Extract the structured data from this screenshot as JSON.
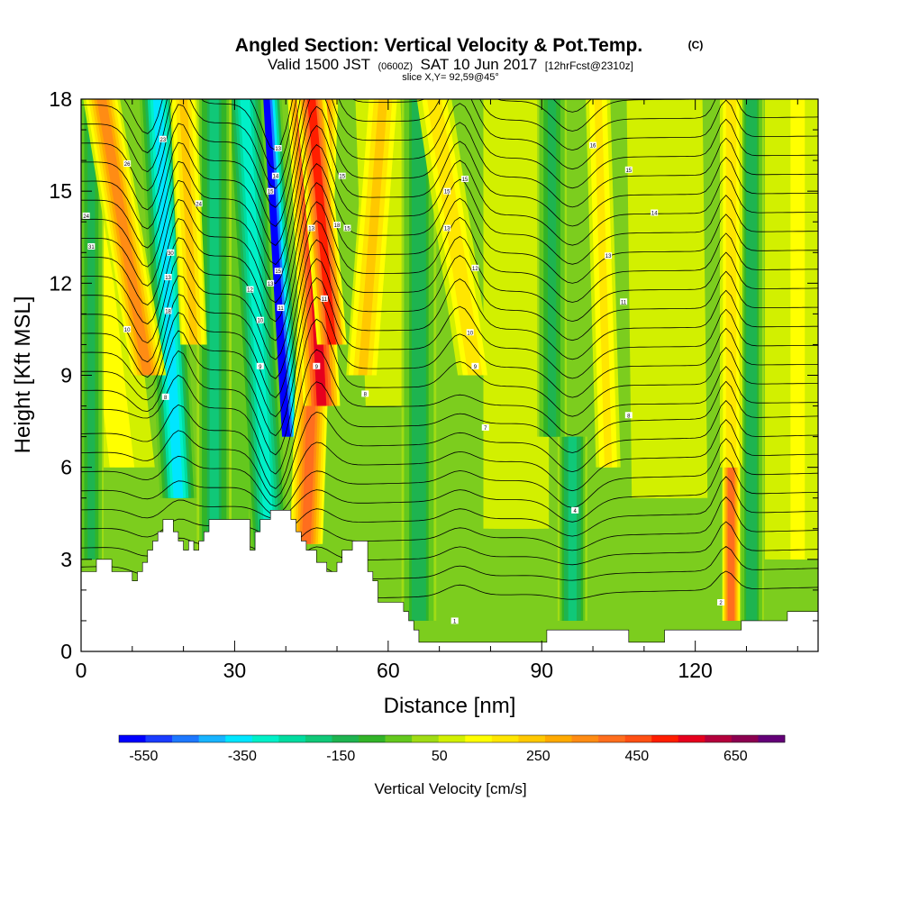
{
  "chart_data": {
    "type": "heatmap",
    "title": "Angled Section: Vertical Velocity & Pot.Temp.",
    "title_mark": "(C)",
    "subtitle_parts": [
      "Valid 1500 JST",
      "(0600Z)",
      "SAT 10 Jun 2017",
      "[12hrFcst@2310z]"
    ],
    "slice_text": "slice X,Y= 92,59@45°",
    "xlabel": "Distance [nm]",
    "ylabel": "Height [Kft MSL]",
    "xlim": [
      0,
      144
    ],
    "ylim": [
      0,
      18
    ],
    "x_ticks": [
      "0",
      "30",
      "60",
      "90",
      "120"
    ],
    "y_ticks": [
      "0",
      "3",
      "6",
      "9",
      "12",
      "15",
      "18"
    ],
    "colorbar": {
      "label": "Vertical Velocity [cm/s]",
      "tick_labels": [
        "-550",
        "-350",
        "-150",
        "50",
        "250",
        "450",
        "650"
      ],
      "bounds": [
        -600,
        750
      ],
      "colors": [
        "#0000ff",
        "#1a3cff",
        "#1e78ff",
        "#18b4ff",
        "#00e6ff",
        "#00f0c8",
        "#00dca0",
        "#10c878",
        "#1eb450",
        "#32b428",
        "#64c81e",
        "#a0dc14",
        "#d2f000",
        "#ffff00",
        "#ffe600",
        "#ffc800",
        "#ffaa00",
        "#ff8c14",
        "#ff6e1e",
        "#ff5014",
        "#ff1e00",
        "#e6001e",
        "#b4003c",
        "#8c0050",
        "#640078"
      ]
    },
    "terrain_kft": [
      [
        0,
        2.6
      ],
      [
        3,
        2.6
      ],
      [
        3,
        3.0
      ],
      [
        6,
        3.0
      ],
      [
        6,
        2.6
      ],
      [
        10,
        2.6
      ],
      [
        10,
        2.3
      ],
      [
        11,
        2.3
      ],
      [
        11,
        2.6
      ],
      [
        12,
        2.6
      ],
      [
        12,
        2.9
      ],
      [
        13,
        2.9
      ],
      [
        13,
        3.3
      ],
      [
        14,
        3.3
      ],
      [
        14,
        3.6
      ],
      [
        15,
        3.6
      ],
      [
        15,
        3.9
      ],
      [
        16,
        3.9
      ],
      [
        16,
        4.3
      ],
      [
        18,
        4.3
      ],
      [
        18,
        3.9
      ],
      [
        19,
        3.9
      ],
      [
        19,
        3.6
      ],
      [
        20,
        3.6
      ],
      [
        20,
        3.3
      ],
      [
        21,
        3.3
      ],
      [
        21,
        3.6
      ],
      [
        22,
        3.6
      ],
      [
        22,
        3.3
      ],
      [
        23,
        3.3
      ],
      [
        23,
        3.6
      ],
      [
        24,
        3.6
      ],
      [
        24,
        3.9
      ],
      [
        25,
        3.9
      ],
      [
        25,
        4.3
      ],
      [
        33,
        4.3
      ],
      [
        33,
        3.3
      ],
      [
        34,
        3.3
      ],
      [
        34,
        3.9
      ],
      [
        35,
        3.9
      ],
      [
        35,
        4.3
      ],
      [
        37,
        4.3
      ],
      [
        37,
        4.6
      ],
      [
        41,
        4.6
      ],
      [
        41,
        4.3
      ],
      [
        42,
        4.3
      ],
      [
        42,
        3.9
      ],
      [
        43,
        3.9
      ],
      [
        43,
        3.6
      ],
      [
        44,
        3.6
      ],
      [
        44,
        3.3
      ],
      [
        46,
        3.3
      ],
      [
        46,
        2.9
      ],
      [
        48,
        2.9
      ],
      [
        48,
        2.6
      ],
      [
        50,
        2.6
      ],
      [
        50,
        2.9
      ],
      [
        51,
        2.9
      ],
      [
        51,
        3.3
      ],
      [
        53,
        3.3
      ],
      [
        53,
        3.6
      ],
      [
        56,
        3.6
      ],
      [
        56,
        2.6
      ],
      [
        57,
        2.6
      ],
      [
        57,
        2.3
      ],
      [
        58,
        2.3
      ],
      [
        58,
        1.6
      ],
      [
        63,
        1.6
      ],
      [
        63,
        1.3
      ],
      [
        64,
        1.3
      ],
      [
        64,
        1.0
      ],
      [
        65,
        1.0
      ],
      [
        65,
        0.7
      ],
      [
        66,
        0.7
      ],
      [
        66,
        0.3
      ],
      [
        91,
        0.3
      ],
      [
        91,
        0.7
      ],
      [
        107,
        0.7
      ],
      [
        107,
        0.3
      ],
      [
        114,
        0.3
      ],
      [
        114,
        0.7
      ],
      [
        129,
        0.7
      ],
      [
        129,
        1.0
      ],
      [
        138,
        1.0
      ],
      [
        138,
        1.3
      ],
      [
        144,
        1.3
      ]
    ],
    "updraft_columns": [
      {
        "x": [
          13,
          4
        ],
        "w": 3.2,
        "v": 330,
        "z": [
          9,
          18
        ]
      },
      {
        "x": [
          22,
          20
        ],
        "w": 2.2,
        "v": 220,
        "z": [
          10,
          18
        ]
      },
      {
        "x": [
          44,
          47
        ],
        "w": 2.8,
        "v": 380,
        "z": [
          3.5,
          18
        ]
      },
      {
        "x": [
          47,
          44
        ],
        "w": 3.2,
        "v": 560,
        "z": [
          8,
          18
        ]
      },
      {
        "x": [
          49,
          45
        ],
        "w": 2.5,
        "v": 500,
        "z": [
          10,
          18
        ]
      },
      {
        "x": [
          55,
          59
        ],
        "w": 2.8,
        "v": 210,
        "z": [
          9,
          18
        ]
      },
      {
        "x": [
          77,
          69
        ],
        "w": 3.0,
        "v": 190,
        "z": [
          9,
          18
        ]
      },
      {
        "x": [
          103,
          101
        ],
        "w": 2.0,
        "v": 170,
        "z": [
          6,
          18
        ]
      },
      {
        "x": [
          127,
          127
        ],
        "w": 1.3,
        "v": 420,
        "z": [
          1,
          8
        ]
      },
      {
        "x": [
          127,
          127
        ],
        "w": 1.8,
        "v": 180,
        "z": [
          6,
          18
        ]
      }
    ],
    "downdraft_columns": [
      {
        "x": [
          19,
          15
        ],
        "w": 3.2,
        "v": -380,
        "z": [
          5,
          18
        ]
      },
      {
        "x": [
          40,
          36
        ],
        "w": 2.8,
        "v": -560,
        "z": [
          7,
          18
        ]
      },
      {
        "x": [
          37,
          32
        ],
        "w": 3.2,
        "v": -300,
        "z": [
          3,
          18
        ]
      },
      {
        "x": [
          26,
          26
        ],
        "w": 3.0,
        "v": -180,
        "z": [
          3,
          18
        ]
      },
      {
        "x": [
          66,
          66
        ],
        "w": 3.0,
        "v": -160,
        "z": [
          1,
          18
        ]
      },
      {
        "x": [
          96,
          96
        ],
        "w": 2.5,
        "v": -200,
        "z": [
          1,
          7
        ]
      },
      {
        "x": [
          92,
          92
        ],
        "w": 2.5,
        "v": -130,
        "z": [
          7,
          18
        ]
      },
      {
        "x": [
          131,
          131
        ],
        "w": 2.0,
        "v": -150,
        "z": [
          1,
          18
        ]
      },
      {
        "x": [
          2,
          2
        ],
        "w": 2.0,
        "v": -120,
        "z": [
          3,
          18
        ]
      }
    ],
    "contour_labels": [
      {
        "text": "23",
        "x": 16,
        "z": 16.7
      },
      {
        "text": "26",
        "x": 9,
        "z": 15.9
      },
      {
        "text": "24",
        "x": 1,
        "z": 14.2
      },
      {
        "text": "24",
        "x": 23,
        "z": 14.6
      },
      {
        "text": "31",
        "x": 2,
        "z": 13.2
      },
      {
        "text": "30",
        "x": 17.5,
        "z": 13.0
      },
      {
        "text": "13",
        "x": 17,
        "z": 12.2
      },
      {
        "text": "18",
        "x": 17,
        "z": 11.1
      },
      {
        "text": "10",
        "x": 9,
        "z": 10.5
      },
      {
        "text": "8",
        "x": 16.5,
        "z": 8.3
      },
      {
        "text": "13",
        "x": 38.5,
        "z": 16.4
      },
      {
        "text": "14",
        "x": 38,
        "z": 15.5
      },
      {
        "text": "15",
        "x": 37,
        "z": 15.0
      },
      {
        "text": "15",
        "x": 38.5,
        "z": 12.4
      },
      {
        "text": "13",
        "x": 37,
        "z": 12.0
      },
      {
        "text": "12",
        "x": 33,
        "z": 11.8
      },
      {
        "text": "11",
        "x": 39,
        "z": 11.2
      },
      {
        "text": "10",
        "x": 35,
        "z": 10.8
      },
      {
        "text": "9",
        "x": 35,
        "z": 9.3
      },
      {
        "text": "15",
        "x": 51,
        "z": 15.5
      },
      {
        "text": "13",
        "x": 45,
        "z": 13.8
      },
      {
        "text": "18",
        "x": 50,
        "z": 13.9
      },
      {
        "text": "15",
        "x": 52,
        "z": 13.8
      },
      {
        "text": "11",
        "x": 47.5,
        "z": 11.5
      },
      {
        "text": "9",
        "x": 46,
        "z": 9.3
      },
      {
        "text": "8",
        "x": 55.5,
        "z": 8.4
      },
      {
        "text": "15",
        "x": 71.5,
        "z": 15.0
      },
      {
        "text": "15",
        "x": 75,
        "z": 15.4
      },
      {
        "text": "13",
        "x": 71.5,
        "z": 13.8
      },
      {
        "text": "12",
        "x": 77,
        "z": 12.5
      },
      {
        "text": "10",
        "x": 76,
        "z": 10.4
      },
      {
        "text": "9",
        "x": 77,
        "z": 9.3
      },
      {
        "text": "7",
        "x": 79,
        "z": 7.3
      },
      {
        "text": "16",
        "x": 100,
        "z": 16.5
      },
      {
        "text": "15",
        "x": 107,
        "z": 15.7
      },
      {
        "text": "14",
        "x": 112,
        "z": 14.3
      },
      {
        "text": "13",
        "x": 103,
        "z": 12.9
      },
      {
        "text": "11",
        "x": 106,
        "z": 11.4
      },
      {
        "text": "8",
        "x": 107,
        "z": 7.7
      },
      {
        "text": "4",
        "x": 96.5,
        "z": 4.6
      },
      {
        "text": "1",
        "x": 73,
        "z": 1.0
      },
      {
        "text": "2",
        "x": 125,
        "z": 1.6
      }
    ]
  }
}
